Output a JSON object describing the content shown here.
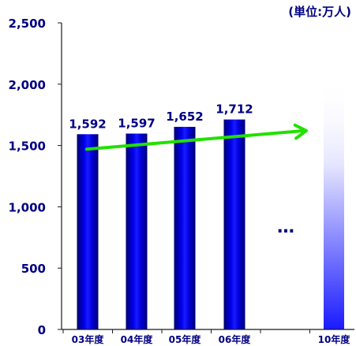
{
  "chart_data": {
    "type": "bar",
    "unit_label": "(単位:万人)",
    "categories": [
      "03年度",
      "04年度",
      "05年度",
      "06年度",
      "",
      "10年度"
    ],
    "values": [
      1592,
      1597,
      1652,
      1712,
      null,
      null
    ],
    "value_labels": [
      "1,592",
      "1,597",
      "1,652",
      "1,712",
      "",
      ""
    ],
    "y_ticks": [
      "0",
      "500",
      "1,000",
      "1,500",
      "2,000",
      "2,500"
    ],
    "ylim": [
      0,
      2500
    ],
    "grid": false,
    "ellipsis": "…",
    "projected_bar": {
      "category": "10年度",
      "style": "gradient-fade"
    },
    "trend_arrow": {
      "from_value": 1470,
      "to_value": 1620,
      "color": "#22e000"
    },
    "colors": {
      "bar": "#0000ee",
      "bar_dark": "#000088",
      "axis": "#1a1a1a",
      "labels": "#000080"
    }
  }
}
